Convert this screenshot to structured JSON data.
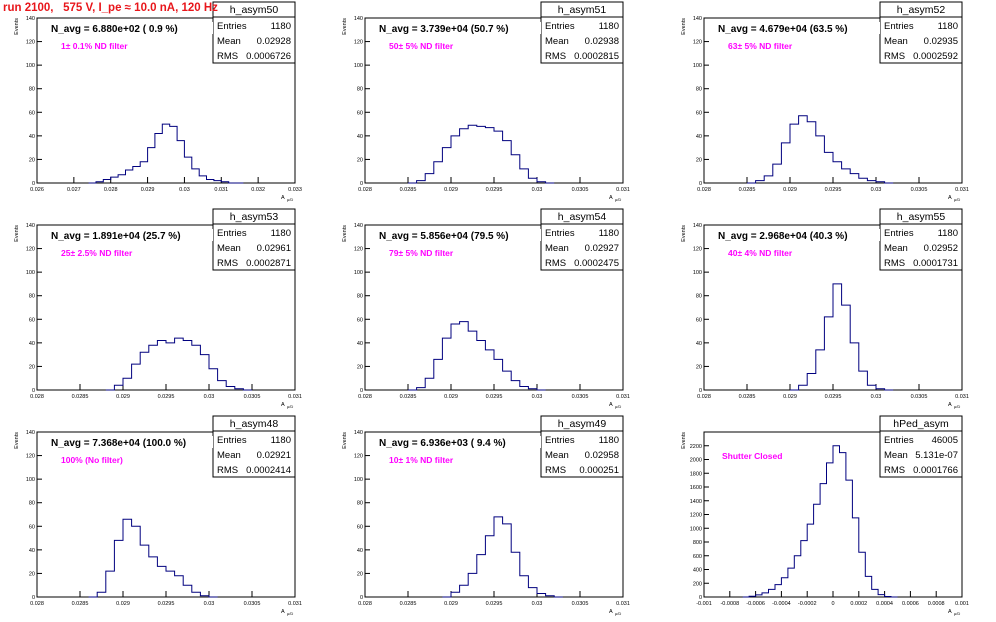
{
  "run_title": "run 2100,   575 V, I_pe ≈ 10.0 nA, 120 Hz",
  "stat_labels": {
    "entries": "Entries",
    "mean": "Mean",
    "rms": "RMS"
  },
  "y_axis_title": "Events",
  "x_axis_title": "A",
  "x_axis_subscript": "μ/D",
  "colors": {
    "histogram": "#00007f",
    "run_title": "#e8161b",
    "filter_label": "#ff00ff"
  },
  "chart_data": [
    {
      "type": "histogram",
      "name": "h_asym50",
      "entries": "1180",
      "mean": "0.02928",
      "rms": "0.0006726",
      "navg": "N_avg = 6.880e+02 ( 0.9 %)",
      "filter": "1± 0.1% ND filter",
      "xlim": [
        0.026,
        0.033
      ],
      "ylim": [
        0,
        140
      ],
      "xticks": [
        0.026,
        0.027,
        0.028,
        0.029,
        0.03,
        0.031,
        0.032,
        0.033
      ],
      "xtick_labels": [
        "0.026",
        "0.027",
        "0.028",
        "0.029",
        "0.03",
        "0.031",
        "0.032",
        "0.033"
      ],
      "yticks": [
        0,
        20,
        40,
        60,
        80,
        100,
        120,
        140
      ],
      "ytick_labels": [
        "0",
        "20",
        "40",
        "60",
        "80",
        "100",
        "120",
        "140"
      ],
      "bins": [
        [
          0.0274,
          0
        ],
        [
          0.0276,
          1
        ],
        [
          0.0278,
          3
        ],
        [
          0.028,
          5
        ],
        [
          0.0282,
          7
        ],
        [
          0.0284,
          11
        ],
        [
          0.0286,
          14
        ],
        [
          0.0288,
          18
        ],
        [
          0.029,
          30
        ],
        [
          0.0292,
          42
        ],
        [
          0.0294,
          50
        ],
        [
          0.0296,
          48
        ],
        [
          0.0298,
          36
        ],
        [
          0.03,
          22
        ],
        [
          0.0302,
          12
        ],
        [
          0.0304,
          6
        ],
        [
          0.0306,
          3
        ],
        [
          0.0308,
          2
        ],
        [
          0.031,
          1
        ],
        [
          0.0312,
          0
        ],
        [
          0.0314,
          0
        ]
      ]
    },
    {
      "type": "histogram",
      "name": "h_asym51",
      "entries": "1180",
      "mean": "0.02938",
      "rms": "0.0002815",
      "navg": "N_avg = 3.739e+04 (50.7 %)",
      "filter": "50± 5% ND filter",
      "xlim": [
        0.028,
        0.031
      ],
      "ylim": [
        0,
        140
      ],
      "xticks": [
        0.028,
        0.0285,
        0.029,
        0.0295,
        0.03,
        0.0305,
        0.031
      ],
      "xtick_labels": [
        "0.028",
        "0.0285",
        "0.029",
        "0.0295",
        "0.03",
        "0.0305",
        "0.031"
      ],
      "yticks": [
        0,
        20,
        40,
        60,
        80,
        100,
        120,
        140
      ],
      "ytick_labels": [
        "0",
        "20",
        "40",
        "60",
        "80",
        "100",
        "120",
        "140"
      ],
      "bins": [
        [
          0.0285,
          0
        ],
        [
          0.0286,
          2
        ],
        [
          0.0287,
          8
        ],
        [
          0.0288,
          18
        ],
        [
          0.0289,
          30
        ],
        [
          0.029,
          40
        ],
        [
          0.0291,
          46
        ],
        [
          0.0292,
          49
        ],
        [
          0.0293,
          48
        ],
        [
          0.0294,
          47
        ],
        [
          0.0295,
          44
        ],
        [
          0.0296,
          36
        ],
        [
          0.0297,
          24
        ],
        [
          0.0298,
          12
        ],
        [
          0.0299,
          4
        ],
        [
          0.03,
          1
        ],
        [
          0.0301,
          0
        ]
      ]
    },
    {
      "type": "histogram",
      "name": "h_asym52",
      "entries": "1180",
      "mean": "0.02935",
      "rms": "0.0002592",
      "navg": "N_avg = 4.679e+04 (63.5 %)",
      "filter": "63± 5% ND filter",
      "xlim": [
        0.028,
        0.031
      ],
      "ylim": [
        0,
        140
      ],
      "xticks": [
        0.028,
        0.0285,
        0.029,
        0.0295,
        0.03,
        0.0305,
        0.031
      ],
      "xtick_labels": [
        "0.028",
        "0.0285",
        "0.029",
        "0.0295",
        "0.03",
        "0.0305",
        "0.031"
      ],
      "yticks": [
        0,
        20,
        40,
        60,
        80,
        100,
        120,
        140
      ],
      "ytick_labels": [
        "0",
        "20",
        "40",
        "60",
        "80",
        "100",
        "120",
        "140"
      ],
      "bins": [
        [
          0.0285,
          0
        ],
        [
          0.0286,
          2
        ],
        [
          0.0287,
          6
        ],
        [
          0.0288,
          16
        ],
        [
          0.0289,
          34
        ],
        [
          0.029,
          50
        ],
        [
          0.0291,
          57
        ],
        [
          0.0292,
          52
        ],
        [
          0.0293,
          40
        ],
        [
          0.0294,
          26
        ],
        [
          0.0295,
          18
        ],
        [
          0.0296,
          12
        ],
        [
          0.0297,
          8
        ],
        [
          0.0298,
          4
        ],
        [
          0.0299,
          2
        ],
        [
          0.03,
          1
        ],
        [
          0.0301,
          0
        ]
      ]
    },
    {
      "type": "histogram",
      "name": "h_asym53",
      "entries": "1180",
      "mean": "0.02961",
      "rms": "0.0002871",
      "navg": "N_avg = 1.891e+04 (25.7 %)",
      "filter": "25± 2.5% ND filter",
      "xlim": [
        0.028,
        0.031
      ],
      "ylim": [
        0,
        140
      ],
      "xticks": [
        0.028,
        0.0285,
        0.029,
        0.0295,
        0.03,
        0.0305,
        0.031
      ],
      "xtick_labels": [
        "0.028",
        "0.0285",
        "0.029",
        "0.0295",
        "0.03",
        "0.0305",
        "0.031"
      ],
      "yticks": [
        0,
        20,
        40,
        60,
        80,
        100,
        120,
        140
      ],
      "ytick_labels": [
        "0",
        "20",
        "40",
        "60",
        "80",
        "100",
        "120",
        "140"
      ],
      "bins": [
        [
          0.0288,
          0
        ],
        [
          0.0289,
          4
        ],
        [
          0.029,
          10
        ],
        [
          0.0291,
          22
        ],
        [
          0.0292,
          32
        ],
        [
          0.0293,
          38
        ],
        [
          0.0294,
          42
        ],
        [
          0.0295,
          40
        ],
        [
          0.0296,
          44
        ],
        [
          0.0297,
          42
        ],
        [
          0.0298,
          38
        ],
        [
          0.0299,
          30
        ],
        [
          0.03,
          18
        ],
        [
          0.0301,
          8
        ],
        [
          0.0302,
          3
        ],
        [
          0.0303,
          1
        ],
        [
          0.0304,
          0
        ]
      ]
    },
    {
      "type": "histogram",
      "name": "h_asym54",
      "entries": "1180",
      "mean": "0.02927",
      "rms": "0.0002475",
      "navg": "N_avg = 5.856e+04 (79.5 %)",
      "filter": "79± 5% ND filter",
      "xlim": [
        0.028,
        0.031
      ],
      "ylim": [
        0,
        140
      ],
      "xticks": [
        0.028,
        0.0285,
        0.029,
        0.0295,
        0.03,
        0.0305,
        0.031
      ],
      "xtick_labels": [
        "0.028",
        "0.0285",
        "0.029",
        "0.0295",
        "0.03",
        "0.0305",
        "0.031"
      ],
      "yticks": [
        0,
        20,
        40,
        60,
        80,
        100,
        120,
        140
      ],
      "ytick_labels": [
        "0",
        "20",
        "40",
        "60",
        "80",
        "100",
        "120",
        "140"
      ],
      "bins": [
        [
          0.0285,
          0
        ],
        [
          0.0286,
          2
        ],
        [
          0.0287,
          10
        ],
        [
          0.0288,
          26
        ],
        [
          0.0289,
          44
        ],
        [
          0.029,
          56
        ],
        [
          0.0291,
          58
        ],
        [
          0.0292,
          50
        ],
        [
          0.0293,
          42
        ],
        [
          0.0294,
          34
        ],
        [
          0.0295,
          26
        ],
        [
          0.0296,
          16
        ],
        [
          0.0297,
          8
        ],
        [
          0.0298,
          3
        ],
        [
          0.0299,
          1
        ],
        [
          0.03,
          0
        ]
      ]
    },
    {
      "type": "histogram",
      "name": "h_asym55",
      "entries": "1180",
      "mean": "0.02952",
      "rms": "0.0001731",
      "navg": "N_avg = 2.968e+04 (40.3 %)",
      "filter": "40± 4% ND filter",
      "xlim": [
        0.028,
        0.031
      ],
      "ylim": [
        0,
        140
      ],
      "xticks": [
        0.028,
        0.0285,
        0.029,
        0.0295,
        0.03,
        0.0305,
        0.031
      ],
      "xtick_labels": [
        "0.028",
        "0.0285",
        "0.029",
        "0.0295",
        "0.03",
        "0.0305",
        "0.031"
      ],
      "yticks": [
        0,
        20,
        40,
        60,
        80,
        100,
        120,
        140
      ],
      "ytick_labels": [
        "0",
        "20",
        "40",
        "60",
        "80",
        "100",
        "120",
        "140"
      ],
      "bins": [
        [
          0.029,
          0
        ],
        [
          0.0291,
          4
        ],
        [
          0.0292,
          14
        ],
        [
          0.0293,
          34
        ],
        [
          0.0294,
          62
        ],
        [
          0.0295,
          90
        ],
        [
          0.0296,
          72
        ],
        [
          0.0297,
          40
        ],
        [
          0.0298,
          16
        ],
        [
          0.0299,
          4
        ],
        [
          0.03,
          1
        ],
        [
          0.0301,
          0
        ]
      ]
    },
    {
      "type": "histogram",
      "name": "h_asym48",
      "entries": "1180",
      "mean": "0.02921",
      "rms": "0.0002414",
      "navg": "N_avg = 7.368e+04 (100.0 %)",
      "filter": "100% (No filter)",
      "xlim": [
        0.028,
        0.031
      ],
      "ylim": [
        0,
        140
      ],
      "xticks": [
        0.028,
        0.0285,
        0.029,
        0.0295,
        0.03,
        0.0305,
        0.031
      ],
      "xtick_labels": [
        "0.028",
        "0.0285",
        "0.029",
        "0.0295",
        "0.03",
        "0.0305",
        "0.031"
      ],
      "yticks": [
        0,
        20,
        40,
        60,
        80,
        100,
        120,
        140
      ],
      "ytick_labels": [
        "0",
        "20",
        "40",
        "60",
        "80",
        "100",
        "120",
        "140"
      ],
      "bins": [
        [
          0.0286,
          0
        ],
        [
          0.0287,
          4
        ],
        [
          0.0288,
          22
        ],
        [
          0.0289,
          48
        ],
        [
          0.029,
          66
        ],
        [
          0.0291,
          60
        ],
        [
          0.0292,
          44
        ],
        [
          0.0293,
          34
        ],
        [
          0.0294,
          26
        ],
        [
          0.0295,
          22
        ],
        [
          0.0296,
          18
        ],
        [
          0.0297,
          10
        ],
        [
          0.0298,
          4
        ],
        [
          0.0299,
          1
        ],
        [
          0.03,
          0
        ]
      ]
    },
    {
      "type": "histogram",
      "name": "h_asym49",
      "entries": "1180",
      "mean": "0.02958",
      "rms": "0.000251",
      "navg": "N_avg = 6.936e+03 ( 9.4 %)",
      "filter": "10± 1% ND filter",
      "xlim": [
        0.028,
        0.031
      ],
      "ylim": [
        0,
        140
      ],
      "xticks": [
        0.028,
        0.0285,
        0.029,
        0.0295,
        0.03,
        0.0305,
        0.031
      ],
      "xtick_labels": [
        "0.028",
        "0.0285",
        "0.029",
        "0.0295",
        "0.03",
        "0.0305",
        "0.031"
      ],
      "yticks": [
        0,
        20,
        40,
        60,
        80,
        100,
        120,
        140
      ],
      "ytick_labels": [
        "0",
        "20",
        "40",
        "60",
        "80",
        "100",
        "120",
        "140"
      ],
      "bins": [
        [
          0.0289,
          0
        ],
        [
          0.029,
          4
        ],
        [
          0.0291,
          10
        ],
        [
          0.0292,
          20
        ],
        [
          0.0293,
          36
        ],
        [
          0.0294,
          52
        ],
        [
          0.0295,
          68
        ],
        [
          0.0296,
          62
        ],
        [
          0.0297,
          38
        ],
        [
          0.0298,
          18
        ],
        [
          0.0299,
          8
        ],
        [
          0.03,
          3
        ],
        [
          0.0301,
          1
        ],
        [
          0.0302,
          0
        ]
      ]
    },
    {
      "type": "histogram",
      "name": "hPed_asym",
      "entries": "46005",
      "mean": "5.131e-07",
      "rms": "0.0001766",
      "navg": "",
      "filter": "Shutter Closed",
      "xlim": [
        -0.001,
        0.001
      ],
      "ylim": [
        0,
        2400
      ],
      "xticks": [
        -0.001,
        -0.0008,
        -0.0006,
        -0.0004,
        -0.0002,
        0,
        0.0002,
        0.0004,
        0.0006,
        0.0008,
        0.001
      ],
      "xtick_labels": [
        "-0.001",
        "-0.0008",
        "-0.0006",
        "-0.0004",
        "-0.0002",
        "0",
        "0.0002",
        "0.0004",
        "0.0006",
        "0.0008",
        "0.001"
      ],
      "yticks": [
        0,
        200,
        400,
        600,
        800,
        1000,
        1200,
        1400,
        1600,
        1800,
        2000,
        2200
      ],
      "ytick_labels": [
        "0",
        "200",
        "400",
        "600",
        "800",
        "1000",
        "1200",
        "1400",
        "1600",
        "1800",
        "2000",
        "2200"
      ],
      "bins": [
        [
          -0.0007,
          0
        ],
        [
          -0.00065,
          10
        ],
        [
          -0.0006,
          30
        ],
        [
          -0.00055,
          60
        ],
        [
          -0.0005,
          110
        ],
        [
          -0.00045,
          180
        ],
        [
          -0.0004,
          280
        ],
        [
          -0.00035,
          420
        ],
        [
          -0.0003,
          600
        ],
        [
          -0.00025,
          820
        ],
        [
          -0.0002,
          1060
        ],
        [
          -0.00015,
          1350
        ],
        [
          -0.0001,
          1650
        ],
        [
          -5e-05,
          1950
        ],
        [
          0.0,
          2200
        ],
        [
          5e-05,
          2100
        ],
        [
          0.0001,
          1700
        ],
        [
          0.00015,
          1150
        ],
        [
          0.0002,
          650
        ],
        [
          0.00025,
          300
        ],
        [
          0.0003,
          110
        ],
        [
          0.00035,
          35
        ],
        [
          0.0004,
          8
        ],
        [
          0.00045,
          0
        ]
      ]
    }
  ]
}
